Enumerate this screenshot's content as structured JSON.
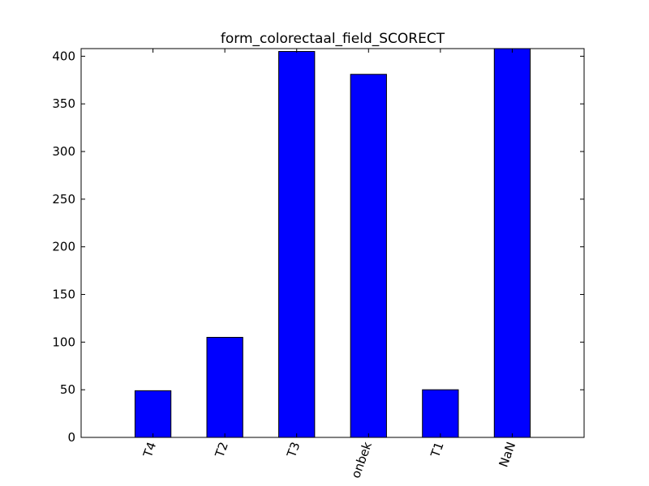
{
  "chart_data": {
    "type": "bar",
    "title": "form_colorectaal_field_SCORECT",
    "xlabel": "",
    "ylabel": "",
    "categories": [
      "T4",
      "T2",
      "T3",
      "onbek",
      "T1",
      "NaN"
    ],
    "values": [
      49,
      105,
      405,
      381,
      50,
      408
    ],
    "ylim": [
      0,
      408
    ],
    "yticks": [
      0,
      50,
      100,
      150,
      200,
      250,
      300,
      350,
      400
    ],
    "grid": false,
    "legend": "none",
    "bar_color": "#0000ff"
  }
}
